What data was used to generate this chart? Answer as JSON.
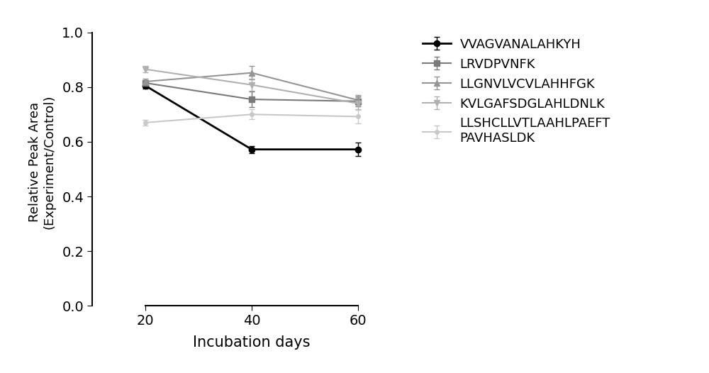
{
  "x": [
    20,
    40,
    60
  ],
  "series": [
    {
      "label": "VVAGVANALAHKYH",
      "y": [
        0.805,
        0.572,
        0.572
      ],
      "yerr": [
        0.01,
        0.013,
        0.025
      ],
      "color": "#000000",
      "marker": "o",
      "markersize": 6,
      "linewidth": 2.0,
      "linestyle": "-",
      "markerfacecolor": "#000000"
    },
    {
      "label": "LRVDPVNFK",
      "y": [
        0.815,
        0.755,
        0.748
      ],
      "yerr": [
        0.01,
        0.028,
        0.018
      ],
      "color": "#7a7a7a",
      "marker": "s",
      "markersize": 6,
      "linewidth": 1.5,
      "linestyle": "-",
      "markerfacecolor": "#7a7a7a"
    },
    {
      "label": "LLGNVLVCVLAHHFGK",
      "y": [
        0.82,
        0.852,
        0.752
      ],
      "yerr": [
        0.01,
        0.025,
        0.018
      ],
      "color": "#959595",
      "marker": "^",
      "markersize": 6,
      "linewidth": 1.5,
      "linestyle": "-",
      "markerfacecolor": "#959595"
    },
    {
      "label": "KVLGAFSDGLAHLDNLK",
      "y": [
        0.865,
        0.808,
        0.74
      ],
      "yerr": [
        0.012,
        0.022,
        0.022
      ],
      "color": "#b0b0b0",
      "marker": "v",
      "markersize": 6,
      "linewidth": 1.5,
      "linestyle": "-",
      "markerfacecolor": "#b0b0b0"
    },
    {
      "label": "LLSHCLLVTLAAHLPAEFT\nPAVHASLDK",
      "y": [
        0.67,
        0.7,
        0.692
      ],
      "yerr": [
        0.01,
        0.018,
        0.025
      ],
      "color": "#c8c8c8",
      "marker": "o",
      "markersize": 4,
      "linewidth": 1.5,
      "linestyle": "-",
      "markerfacecolor": "#c8c8c8"
    }
  ],
  "xlabel": "Incubation days",
  "ylabel": "Relative Peak Area\n(Experiment/Control)",
  "xlim": [
    10,
    70
  ],
  "ylim": [
    0.0,
    1.05
  ],
  "xticks": [
    20,
    40,
    60
  ],
  "yticks": [
    0.0,
    0.2,
    0.4,
    0.6,
    0.8,
    1.0
  ],
  "background_color": "#ffffff",
  "xlabel_fontsize": 15,
  "ylabel_fontsize": 13,
  "tick_fontsize": 14,
  "legend_fontsize": 13
}
